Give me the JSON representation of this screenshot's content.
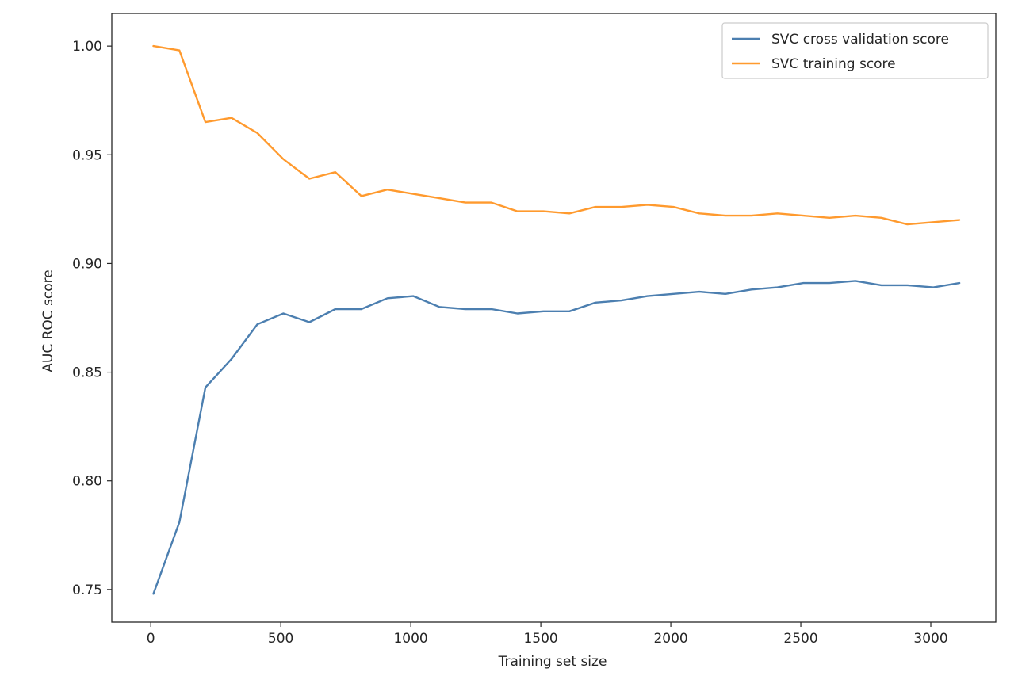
{
  "chart_data": {
    "type": "line",
    "title": "",
    "xlabel": "Training set size",
    "ylabel": "AUC ROC score",
    "xlim": [
      -150,
      3250
    ],
    "ylim": [
      0.735,
      1.015
    ],
    "x_ticks": [
      0,
      500,
      1000,
      1500,
      2000,
      2500,
      3000
    ],
    "x_tick_labels": [
      "0",
      "500",
      "1000",
      "1500",
      "2000",
      "2500",
      "3000"
    ],
    "y_ticks": [
      0.75,
      0.8,
      0.85,
      0.9,
      0.95,
      1.0
    ],
    "y_tick_labels": [
      "0.75",
      "0.80",
      "0.85",
      "0.90",
      "0.95",
      "1.00"
    ],
    "grid": false,
    "legend_position": "top-right",
    "x": [
      10,
      110,
      210,
      310,
      410,
      510,
      610,
      710,
      810,
      910,
      1010,
      1110,
      1210,
      1310,
      1410,
      1510,
      1610,
      1710,
      1810,
      1910,
      2010,
      2110,
      2210,
      2310,
      2410,
      2510,
      2610,
      2710,
      2810,
      2910,
      3010,
      3110
    ],
    "series": [
      {
        "name": "SVC cross validation score",
        "color": "#4c7fb0",
        "values": [
          0.748,
          0.781,
          0.843,
          0.856,
          0.872,
          0.877,
          0.873,
          0.879,
          0.879,
          0.884,
          0.885,
          0.88,
          0.879,
          0.879,
          0.877,
          0.878,
          0.878,
          0.882,
          0.883,
          0.885,
          0.886,
          0.887,
          0.886,
          0.888,
          0.889,
          0.891,
          0.891,
          0.892,
          0.89,
          0.89,
          0.889,
          0.891
        ]
      },
      {
        "name": "SVC training score",
        "color": "#ff9a2e",
        "values": [
          1.0,
          0.998,
          0.965,
          0.967,
          0.96,
          0.948,
          0.939,
          0.942,
          0.931,
          0.934,
          0.932,
          0.93,
          0.928,
          0.928,
          0.924,
          0.924,
          0.923,
          0.926,
          0.926,
          0.927,
          0.926,
          0.923,
          0.922,
          0.922,
          0.923,
          0.922,
          0.921,
          0.922,
          0.921,
          0.918,
          0.919,
          0.92
        ]
      }
    ]
  }
}
